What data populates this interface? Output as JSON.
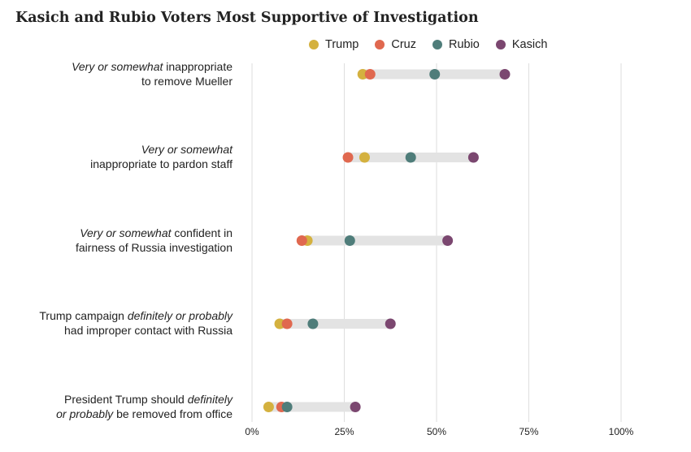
{
  "chart_data": {
    "type": "dot",
    "title": "Kasich and Rubio Voters Most Supportive of Investigation",
    "xlim": [
      0,
      100
    ],
    "x_ticks": [
      "0%",
      "25%",
      "50%",
      "75%",
      "100%"
    ],
    "x_tick_values": [
      0,
      25,
      50,
      75,
      100
    ],
    "grid": true,
    "legend_position": "top",
    "series": [
      {
        "name": "Trump",
        "color": "#d4b13f"
      },
      {
        "name": "Cruz",
        "color": "#e0684f"
      },
      {
        "name": "Rubio",
        "color": "#4f7d7a"
      },
      {
        "name": "Kasich",
        "color": "#7b4770"
      }
    ],
    "categories": [
      {
        "label_parts": [
          {
            "text": "Very or somewhat",
            "italic": true
          },
          {
            "text": " inappropriate",
            "italic": false
          },
          {
            "text": "\n",
            "italic": false
          },
          {
            "text": "to remove Mueller",
            "italic": false
          }
        ],
        "values": {
          "Trump": 30,
          "Cruz": 32,
          "Rubio": 49.5,
          "Kasich": 68.5
        }
      },
      {
        "label_parts": [
          {
            "text": "Very or somewhat",
            "italic": true
          },
          {
            "text": "\n",
            "italic": false
          },
          {
            "text": "inappropriate to pardon staff",
            "italic": false
          }
        ],
        "values": {
          "Trump": 30.5,
          "Cruz": 26,
          "Rubio": 43,
          "Kasich": 60
        }
      },
      {
        "label_parts": [
          {
            "text": "Very or somewhat",
            "italic": true
          },
          {
            "text": " confident in",
            "italic": false
          },
          {
            "text": "\n",
            "italic": false
          },
          {
            "text": "fairness of Russia investigation",
            "italic": false
          }
        ],
        "values": {
          "Trump": 15,
          "Cruz": 13.5,
          "Rubio": 26.5,
          "Kasich": 53
        }
      },
      {
        "label_parts": [
          {
            "text": "Trump campaign ",
            "italic": false
          },
          {
            "text": "definitely or probably",
            "italic": true
          },
          {
            "text": "\n",
            "italic": false
          },
          {
            "text": "had improper contact with Russia",
            "italic": false
          }
        ],
        "values": {
          "Trump": 7.5,
          "Cruz": 9.5,
          "Rubio": 16.5,
          "Kasich": 37.5
        }
      },
      {
        "label_parts": [
          {
            "text": "President Trump should ",
            "italic": false
          },
          {
            "text": "definitely",
            "italic": true
          },
          {
            "text": "\n",
            "italic": false
          },
          {
            "text": "or probably",
            "italic": true
          },
          {
            "text": " be removed from office",
            "italic": false
          }
        ],
        "values": {
          "Trump": 4.5,
          "Cruz": 8,
          "Rubio": 9.5,
          "Kasich": 28
        }
      }
    ]
  }
}
